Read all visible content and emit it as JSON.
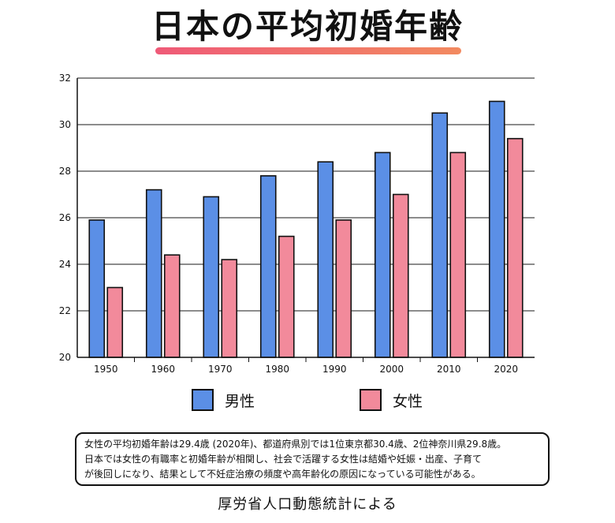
{
  "header": {
    "title": "日本の平均初婚年齢"
  },
  "chart_data": {
    "type": "bar",
    "categories": [
      "1950",
      "1960",
      "1970",
      "1980",
      "1990",
      "2000",
      "2010",
      "2020"
    ],
    "series": [
      {
        "name": "男性",
        "values": [
          25.9,
          27.2,
          26.9,
          27.8,
          28.4,
          28.8,
          30.5,
          31.0
        ],
        "color": "#5b8fe6"
      },
      {
        "name": "女性",
        "values": [
          23.0,
          24.4,
          24.2,
          25.2,
          25.9,
          27.0,
          28.8,
          29.4
        ],
        "color": "#f28a9b"
      }
    ],
    "yticks": [
      20,
      22,
      24,
      26,
      28,
      30,
      32
    ],
    "ylim": [
      20,
      32
    ],
    "grid": true,
    "legend_position": "bottom"
  },
  "note": {
    "lines": [
      "女性の平均初婚年齢は29.4歳 (2020年)、都道府県別では1位東京都30.4歳、2位神奈川県29.8歳。",
      "日本では女性の有職率と初婚年齢が相関し、社会で活躍する女性は結婚や妊娠・出産、子育て",
      "が後回しになり、結果として不妊症治療の頻度や高年齢化の原因になっている可能性がある。"
    ]
  },
  "source": {
    "text": "厚労省人口動態統計による"
  }
}
